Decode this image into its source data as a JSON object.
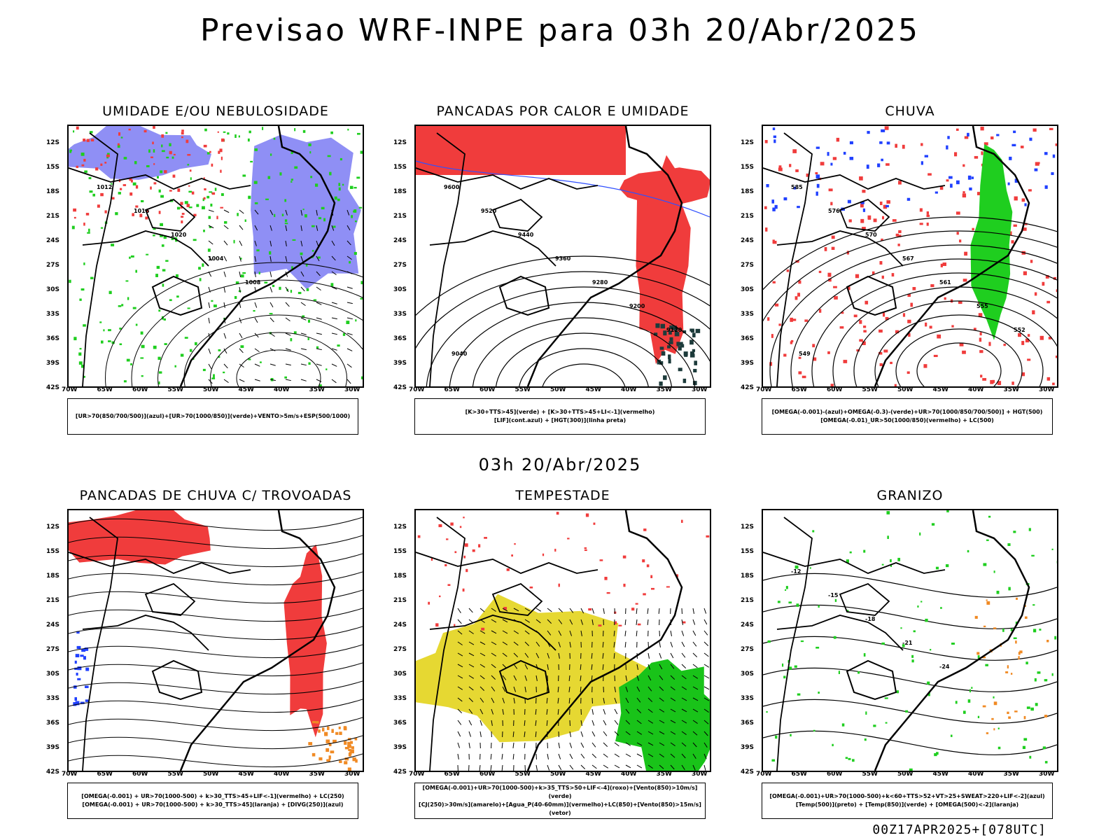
{
  "title": "Previsao WRF-INPE  para 03h 20/Abr/2025",
  "mid_date": "03h 20/Abr/2025",
  "footer": "00Z17APR2025+[078UTC]",
  "axes": {
    "lat_labels": [
      "12S",
      "15S",
      "18S",
      "21S",
      "24S",
      "27S",
      "30S",
      "33S",
      "36S",
      "39S",
      "42S"
    ],
    "lon_labels": [
      "70W",
      "65W",
      "60W",
      "55W",
      "50W",
      "45W",
      "40W",
      "35W",
      "30W"
    ]
  },
  "colors": {
    "azul": "#8f8ff5",
    "verde": "#1fce1f",
    "vermelho": "#f03c3c",
    "laranja": "#f08a24",
    "amarelo": "#e6d832",
    "contour": "#000000"
  },
  "panels": [
    {
      "title": "UMIDADE E/OU NEBULOSIDADE",
      "legend": [
        "[UR>70(850/700/500)](azul)+[UR>70(1000/850)](verde)+VENTO>5m/s+ESP(500/1000)"
      ],
      "contour_labels": [
        "1012",
        "1016",
        "1020",
        "1004",
        "1008"
      ]
    },
    {
      "title": "PANCADAS POR CALOR E UMIDADE",
      "legend": [
        "[K>30+TTS>45](verde)  +  [K>30+TTS>45+LI<-1](vermelho)",
        "[LIF](cont.azul)  +  [HGT(300)](linha preta)"
      ],
      "contour_labels": [
        "9600",
        "9520",
        "9440",
        "9360",
        "9280",
        "9200",
        "9120",
        "9040"
      ]
    },
    {
      "title": "CHUVA",
      "legend": [
        "[OMEGA(-0.001)-(azul)+OMEGA(-0.3)-(verde)+UR>70(1000/850/700/500)]  +  HGT(500)",
        "[OMEGA(-0.01)_UR>50(1000/850)(vermelho)  +  LC(500)"
      ],
      "contour_labels": [
        "585",
        "576",
        "570",
        "567",
        "561",
        "555",
        "552",
        "549"
      ]
    },
    {
      "title": "PANCADAS DE CHUVA C/ TROVOADAS",
      "legend": [
        "[OMEGA(-0.001)  +  UR>70(1000-500)  +  k>30_TTS>45+LIF<-1](vermelho)  +  LC(250)",
        "[OMEGA(-0.001)  +  UR>70(1000-500)  +  k>30_TTS>45](laranja)  +  [DIVG(250)](azul)"
      ],
      "contour_labels": []
    },
    {
      "title": "TEMPESTADE",
      "legend": [
        "[OMEGA(-0.001)+UR>70(1000-500)+k>35_TTS>50+LIF<-4](roxo)+[Vento(850)>10m/s](verde)",
        "[CJ(250)>30m/s](amarelo)+[Agua_P(40-60mm)](vermelho)+LC(850)+[Vento(850)>15m/s](vetor)"
      ],
      "contour_labels": []
    },
    {
      "title": "GRANIZO",
      "legend": [
        "[OMEGA(-0.001)+UR>70(1000-500)+k<60+TTS>52+VT>25+SWEAT>220+LIF<-2](azul)",
        "[Temp(500)](preto)  +  [Temp(850)](verde)  +  [OMEGA(500)<-2](laranja)"
      ],
      "contour_labels": [
        "-12",
        "-15",
        "-18",
        "-21",
        "-24"
      ]
    }
  ]
}
